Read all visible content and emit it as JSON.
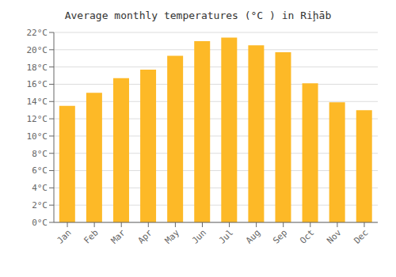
{
  "chart_data": {
    "type": "bar",
    "title": "Average monthly temperatures (°C ) in Riḩāb",
    "categories": [
      "Jan",
      "Feb",
      "Mar",
      "Apr",
      "May",
      "Jun",
      "Jul",
      "Aug",
      "Sep",
      "Oct",
      "Nov",
      "Dec"
    ],
    "values": [
      13.5,
      15.0,
      16.7,
      17.7,
      19.3,
      21.0,
      21.4,
      20.5,
      19.7,
      16.1,
      13.9,
      13.0
    ],
    "color": "#FDB927",
    "ylim": [
      0,
      22
    ],
    "yticks": [
      {
        "value": 0,
        "label": "0°C"
      },
      {
        "value": 2,
        "label": "2°C"
      },
      {
        "value": 4,
        "label": "4°C"
      },
      {
        "value": 6,
        "label": "6°C"
      },
      {
        "value": 8,
        "label": "8°C"
      },
      {
        "value": 10,
        "label": "10°C"
      },
      {
        "value": 12,
        "label": "12°C"
      },
      {
        "value": 14,
        "label": "14°C"
      },
      {
        "value": 16,
        "label": "16°C"
      },
      {
        "value": 18,
        "label": "18°C"
      },
      {
        "value": 20,
        "label": "20°C"
      },
      {
        "value": 22,
        "label": "22°C"
      }
    ],
    "grid": true
  }
}
